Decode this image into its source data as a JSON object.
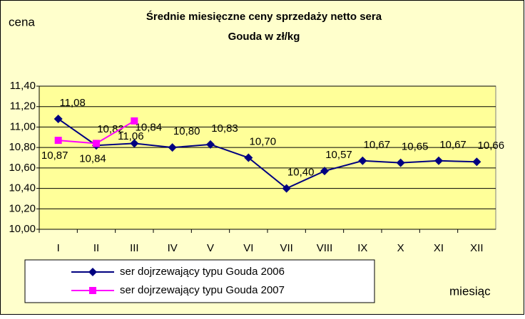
{
  "chart_data": {
    "type": "line",
    "title": [
      "Średnie miesięczne ceny sprzedaży netto sera",
      "Gouda w zł/kg"
    ],
    "y_label": "cena",
    "x_label": "miesiąc",
    "categories": [
      "I",
      "II",
      "III",
      "IV",
      "V",
      "VI",
      "VII",
      "VIII",
      "IX",
      "X",
      "XI",
      "XII"
    ],
    "series": [
      {
        "name": "ser dojrzewający typu Gouda 2006",
        "color": "#000080",
        "marker": "diamond",
        "values": [
          11.08,
          10.82,
          10.84,
          10.8,
          10.83,
          10.7,
          10.4,
          10.57,
          10.67,
          10.65,
          10.67,
          10.66
        ],
        "value_labels": [
          "11,08",
          "10,82",
          "10,84",
          "10,80",
          "10,83",
          "10,70",
          "10,40",
          "10,57",
          "10,67",
          "10,65",
          "10,67",
          "10,66"
        ]
      },
      {
        "name": "ser dojrzewający typu Gouda 2007",
        "color": "#ff00ff",
        "marker": "square",
        "values": [
          10.87,
          10.84,
          11.06,
          null,
          null,
          null,
          null,
          null,
          null,
          null,
          null,
          null
        ],
        "value_labels": [
          "10,87",
          "10,84",
          "11,06",
          null,
          null,
          null,
          null,
          null,
          null,
          null,
          null,
          null
        ]
      }
    ],
    "ylim": [
      10.0,
      11.4
    ],
    "yticks": [
      {
        "value": 10.0,
        "label": "10,00"
      },
      {
        "value": 10.2,
        "label": "10,20"
      },
      {
        "value": 10.4,
        "label": "10,40"
      },
      {
        "value": 10.6,
        "label": "10,60"
      },
      {
        "value": 10.8,
        "label": "10,80"
      },
      {
        "value": 11.0,
        "label": "11,00"
      },
      {
        "value": 11.2,
        "label": "11,20"
      },
      {
        "value": 11.4,
        "label": "11,40"
      }
    ],
    "grid": true
  }
}
